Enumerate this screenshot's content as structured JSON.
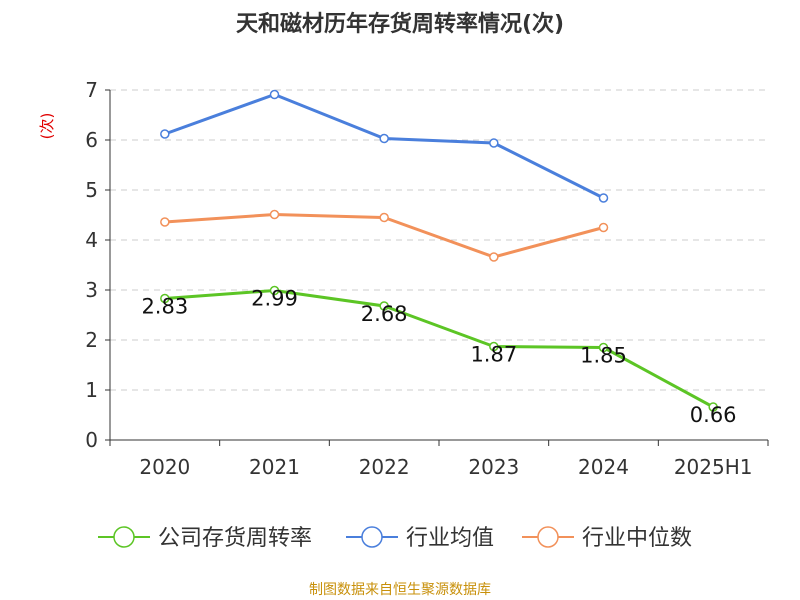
{
  "colors": {
    "title": "#333333",
    "axis": "#333333",
    "grid": "#cccccc",
    "ylabel": "#e00000",
    "source": "#c8900a"
  },
  "source_note": "制图数据来自恒生聚源数据库",
  "chart_data": {
    "type": "line",
    "title": "天和磁材历年存货周转率情况(次)",
    "ylabel": "(次)",
    "xlabel": "",
    "categories": [
      "2020",
      "2021",
      "2022",
      "2023",
      "2024",
      "2025H1"
    ],
    "ylim": [
      0,
      7
    ],
    "yticks": [
      "0",
      "1",
      "2",
      "3",
      "4",
      "5",
      "6",
      "7"
    ],
    "grid": true,
    "legend_position": "bottom",
    "series": [
      {
        "name": "公司存货周转率",
        "color": "#5cc525",
        "values": [
          2.83,
          2.99,
          2.68,
          1.87,
          1.85,
          0.66
        ],
        "data_labels": [
          "2.83",
          "2.99",
          "2.68",
          "1.87",
          "1.85",
          "0.66"
        ]
      },
      {
        "name": "行业均值",
        "color": "#4a7fdc",
        "values": [
          6.12,
          6.91,
          6.03,
          5.94,
          4.84,
          null
        ]
      },
      {
        "name": "行业中位数",
        "color": "#f2915a",
        "values": [
          4.36,
          4.51,
          4.45,
          3.66,
          4.25,
          null
        ]
      }
    ]
  }
}
